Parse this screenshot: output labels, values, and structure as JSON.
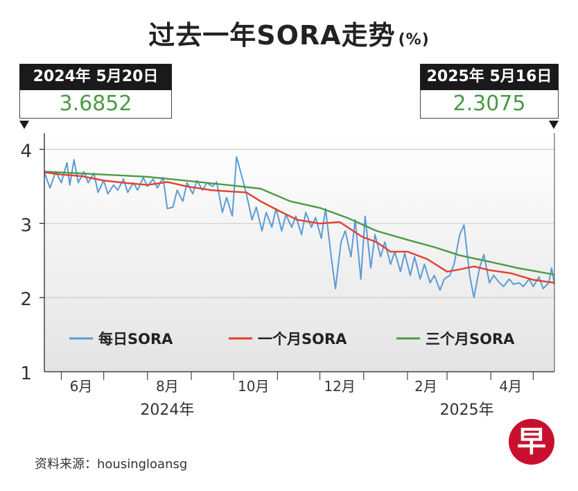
{
  "title": "过去一年SORA走势",
  "title_unit": "(%)",
  "callouts": {
    "left": {
      "date": "2024年 5月20日",
      "value": "3.6852"
    },
    "right": {
      "date": "2025年 5月16日",
      "value": "2.3075"
    }
  },
  "source": "资料来源：housingloansg",
  "logo_glyph": "早",
  "chart_data": {
    "type": "line",
    "title": "过去一年SORA走势",
    "unit": "%",
    "x_range": [
      "2024-05-20",
      "2025-05-16"
    ],
    "ylim": [
      1,
      4.2
    ],
    "y_ticks": [
      1,
      2,
      3,
      4
    ],
    "x_month_labels": [
      {
        "label": "6月",
        "date": "2024-06-15"
      },
      {
        "label": "8月",
        "date": "2024-08-15"
      },
      {
        "label": "10月",
        "date": "2024-10-15"
      },
      {
        "label": "12月",
        "date": "2024-12-15"
      },
      {
        "label": "2月",
        "date": "2025-02-14"
      },
      {
        "label": "4月",
        "date": "2025-04-15"
      }
    ],
    "x_month_boundaries": [
      "2024-06-01",
      "2024-07-01",
      "2024-08-01",
      "2024-09-01",
      "2024-10-01",
      "2024-11-01",
      "2024-12-01",
      "2025-01-01",
      "2025-02-01",
      "2025-03-01",
      "2025-04-01",
      "2025-05-01"
    ],
    "x_year_labels": [
      {
        "label": "2024年",
        "date": "2024-08-15"
      },
      {
        "label": "2025年",
        "date": "2025-03-15"
      }
    ],
    "grid": true,
    "legend_position": "bottom",
    "series": [
      {
        "name": "每日SORA",
        "color": "#5b9bd5",
        "points": [
          [
            "2024-05-20",
            3.69
          ],
          [
            "2024-05-24",
            3.48
          ],
          [
            "2024-05-28",
            3.7
          ],
          [
            "2024-06-01",
            3.55
          ],
          [
            "2024-06-05",
            3.82
          ],
          [
            "2024-06-07",
            3.52
          ],
          [
            "2024-06-10",
            3.86
          ],
          [
            "2024-06-13",
            3.55
          ],
          [
            "2024-06-17",
            3.7
          ],
          [
            "2024-06-20",
            3.55
          ],
          [
            "2024-06-24",
            3.68
          ],
          [
            "2024-06-27",
            3.42
          ],
          [
            "2024-07-01",
            3.58
          ],
          [
            "2024-07-04",
            3.4
          ],
          [
            "2024-07-08",
            3.52
          ],
          [
            "2024-07-11",
            3.45
          ],
          [
            "2024-07-15",
            3.6
          ],
          [
            "2024-07-18",
            3.42
          ],
          [
            "2024-07-22",
            3.55
          ],
          [
            "2024-07-25",
            3.45
          ],
          [
            "2024-07-29",
            3.62
          ],
          [
            "2024-08-01",
            3.5
          ],
          [
            "2024-08-05",
            3.6
          ],
          [
            "2024-08-08",
            3.48
          ],
          [
            "2024-08-12",
            3.62
          ],
          [
            "2024-08-15",
            3.2
          ],
          [
            "2024-08-19",
            3.22
          ],
          [
            "2024-08-22",
            3.45
          ],
          [
            "2024-08-26",
            3.3
          ],
          [
            "2024-08-29",
            3.55
          ],
          [
            "2024-09-02",
            3.4
          ],
          [
            "2024-09-05",
            3.58
          ],
          [
            "2024-09-09",
            3.45
          ],
          [
            "2024-09-12",
            3.55
          ],
          [
            "2024-09-16",
            3.5
          ],
          [
            "2024-09-19",
            3.56
          ],
          [
            "2024-09-23",
            3.15
          ],
          [
            "2024-09-26",
            3.35
          ],
          [
            "2024-09-30",
            3.1
          ],
          [
            "2024-10-03",
            3.9
          ],
          [
            "2024-10-07",
            3.62
          ],
          [
            "2024-10-10",
            3.4
          ],
          [
            "2024-10-14",
            3.05
          ],
          [
            "2024-10-17",
            3.22
          ],
          [
            "2024-10-21",
            2.9
          ],
          [
            "2024-10-24",
            3.15
          ],
          [
            "2024-10-28",
            2.95
          ],
          [
            "2024-10-31",
            3.2
          ],
          [
            "2024-11-04",
            2.9
          ],
          [
            "2024-11-07",
            3.12
          ],
          [
            "2024-11-11",
            2.95
          ],
          [
            "2024-11-14",
            3.1
          ],
          [
            "2024-11-18",
            2.85
          ],
          [
            "2024-11-21",
            3.15
          ],
          [
            "2024-11-25",
            2.95
          ],
          [
            "2024-11-28",
            3.08
          ],
          [
            "2024-12-02",
            2.8
          ],
          [
            "2024-12-05",
            3.2
          ],
          [
            "2024-12-09",
            2.55
          ],
          [
            "2024-12-12",
            2.12
          ],
          [
            "2024-12-16",
            2.75
          ],
          [
            "2024-12-19",
            2.9
          ],
          [
            "2024-12-23",
            2.55
          ],
          [
            "2024-12-26",
            3.05
          ],
          [
            "2024-12-30",
            2.25
          ],
          [
            "2025-01-02",
            3.1
          ],
          [
            "2025-01-06",
            2.4
          ],
          [
            "2025-01-09",
            2.85
          ],
          [
            "2025-01-13",
            2.55
          ],
          [
            "2025-01-16",
            2.75
          ],
          [
            "2025-01-20",
            2.45
          ],
          [
            "2025-01-23",
            2.62
          ],
          [
            "2025-01-27",
            2.35
          ],
          [
            "2025-01-30",
            2.6
          ],
          [
            "2025-02-03",
            2.3
          ],
          [
            "2025-02-06",
            2.55
          ],
          [
            "2025-02-10",
            2.25
          ],
          [
            "2025-02-13",
            2.45
          ],
          [
            "2025-02-17",
            2.2
          ],
          [
            "2025-02-20",
            2.3
          ],
          [
            "2025-02-24",
            2.1
          ],
          [
            "2025-02-27",
            2.25
          ],
          [
            "2025-03-03",
            2.3
          ],
          [
            "2025-03-06",
            2.45
          ],
          [
            "2025-03-10",
            2.85
          ],
          [
            "2025-03-13",
            2.98
          ],
          [
            "2025-03-17",
            2.3
          ],
          [
            "2025-03-20",
            2.0
          ],
          [
            "2025-03-24",
            2.4
          ],
          [
            "2025-03-27",
            2.58
          ],
          [
            "2025-03-31",
            2.2
          ],
          [
            "2025-04-03",
            2.3
          ],
          [
            "2025-04-07",
            2.2
          ],
          [
            "2025-04-10",
            2.15
          ],
          [
            "2025-04-14",
            2.25
          ],
          [
            "2025-04-17",
            2.18
          ],
          [
            "2025-04-21",
            2.2
          ],
          [
            "2025-04-24",
            2.15
          ],
          [
            "2025-04-28",
            2.25
          ],
          [
            "2025-05-01",
            2.15
          ],
          [
            "2025-05-05",
            2.28
          ],
          [
            "2025-05-08",
            2.12
          ],
          [
            "2025-05-12",
            2.2
          ],
          [
            "2025-05-14",
            2.4
          ],
          [
            "2025-05-16",
            2.18
          ]
        ]
      },
      {
        "name": "一个月SORA",
        "color": "#e2402f",
        "points": [
          [
            "2024-05-20",
            3.69
          ],
          [
            "2024-06-01",
            3.66
          ],
          [
            "2024-06-15",
            3.64
          ],
          [
            "2024-07-01",
            3.58
          ],
          [
            "2024-07-15",
            3.55
          ],
          [
            "2024-08-01",
            3.52
          ],
          [
            "2024-08-15",
            3.56
          ],
          [
            "2024-08-29",
            3.5
          ],
          [
            "2024-09-15",
            3.45
          ],
          [
            "2024-09-30",
            3.43
          ],
          [
            "2024-10-10",
            3.42
          ],
          [
            "2024-10-20",
            3.3
          ],
          [
            "2024-11-01",
            3.18
          ],
          [
            "2024-11-15",
            3.05
          ],
          [
            "2024-12-01",
            3.0
          ],
          [
            "2024-12-15",
            3.02
          ],
          [
            "2024-12-31",
            2.82
          ],
          [
            "2025-01-10",
            2.75
          ],
          [
            "2025-01-20",
            2.62
          ],
          [
            "2025-02-01",
            2.62
          ],
          [
            "2025-02-15",
            2.52
          ],
          [
            "2025-03-01",
            2.35
          ],
          [
            "2025-03-10",
            2.38
          ],
          [
            "2025-03-20",
            2.42
          ],
          [
            "2025-03-31",
            2.37
          ],
          [
            "2025-04-15",
            2.33
          ],
          [
            "2025-05-01",
            2.24
          ],
          [
            "2025-05-16",
            2.2
          ]
        ]
      },
      {
        "name": "三个月SORA",
        "color": "#4c9a45",
        "points": [
          [
            "2024-05-20",
            3.7
          ],
          [
            "2024-07-01",
            3.66
          ],
          [
            "2024-08-01",
            3.63
          ],
          [
            "2024-09-01",
            3.57
          ],
          [
            "2024-10-01",
            3.51
          ],
          [
            "2024-10-20",
            3.47
          ],
          [
            "2024-11-10",
            3.3
          ],
          [
            "2024-12-01",
            3.21
          ],
          [
            "2024-12-20",
            3.08
          ],
          [
            "2025-01-10",
            2.9
          ],
          [
            "2025-02-01",
            2.78
          ],
          [
            "2025-02-20",
            2.68
          ],
          [
            "2025-03-10",
            2.57
          ],
          [
            "2025-04-01",
            2.48
          ],
          [
            "2025-04-20",
            2.4
          ],
          [
            "2025-05-16",
            2.31
          ]
        ]
      }
    ]
  }
}
